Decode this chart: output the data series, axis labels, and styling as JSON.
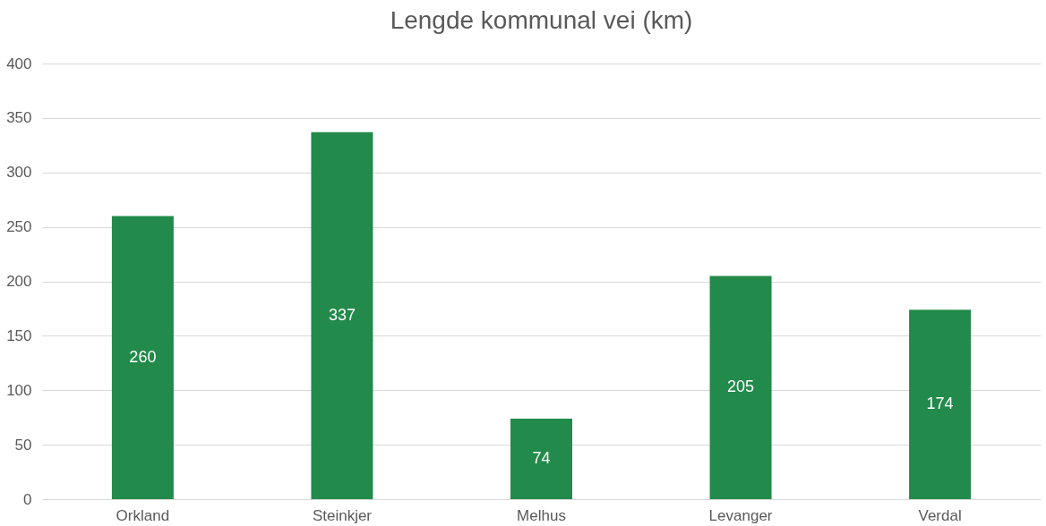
{
  "chart_data": {
    "type": "bar",
    "title": "Lengde kommunal vei (km)",
    "categories": [
      "Orkland",
      "Steinkjer",
      "Melhus",
      "Levanger",
      "Verdal"
    ],
    "values": [
      260,
      337,
      74,
      205,
      174
    ],
    "color": "#228a4a",
    "ylim": [
      0,
      400
    ],
    "yticks": [
      0,
      50,
      100,
      150,
      200,
      250,
      300,
      350,
      400
    ],
    "grid": "y",
    "data_labels": true
  }
}
